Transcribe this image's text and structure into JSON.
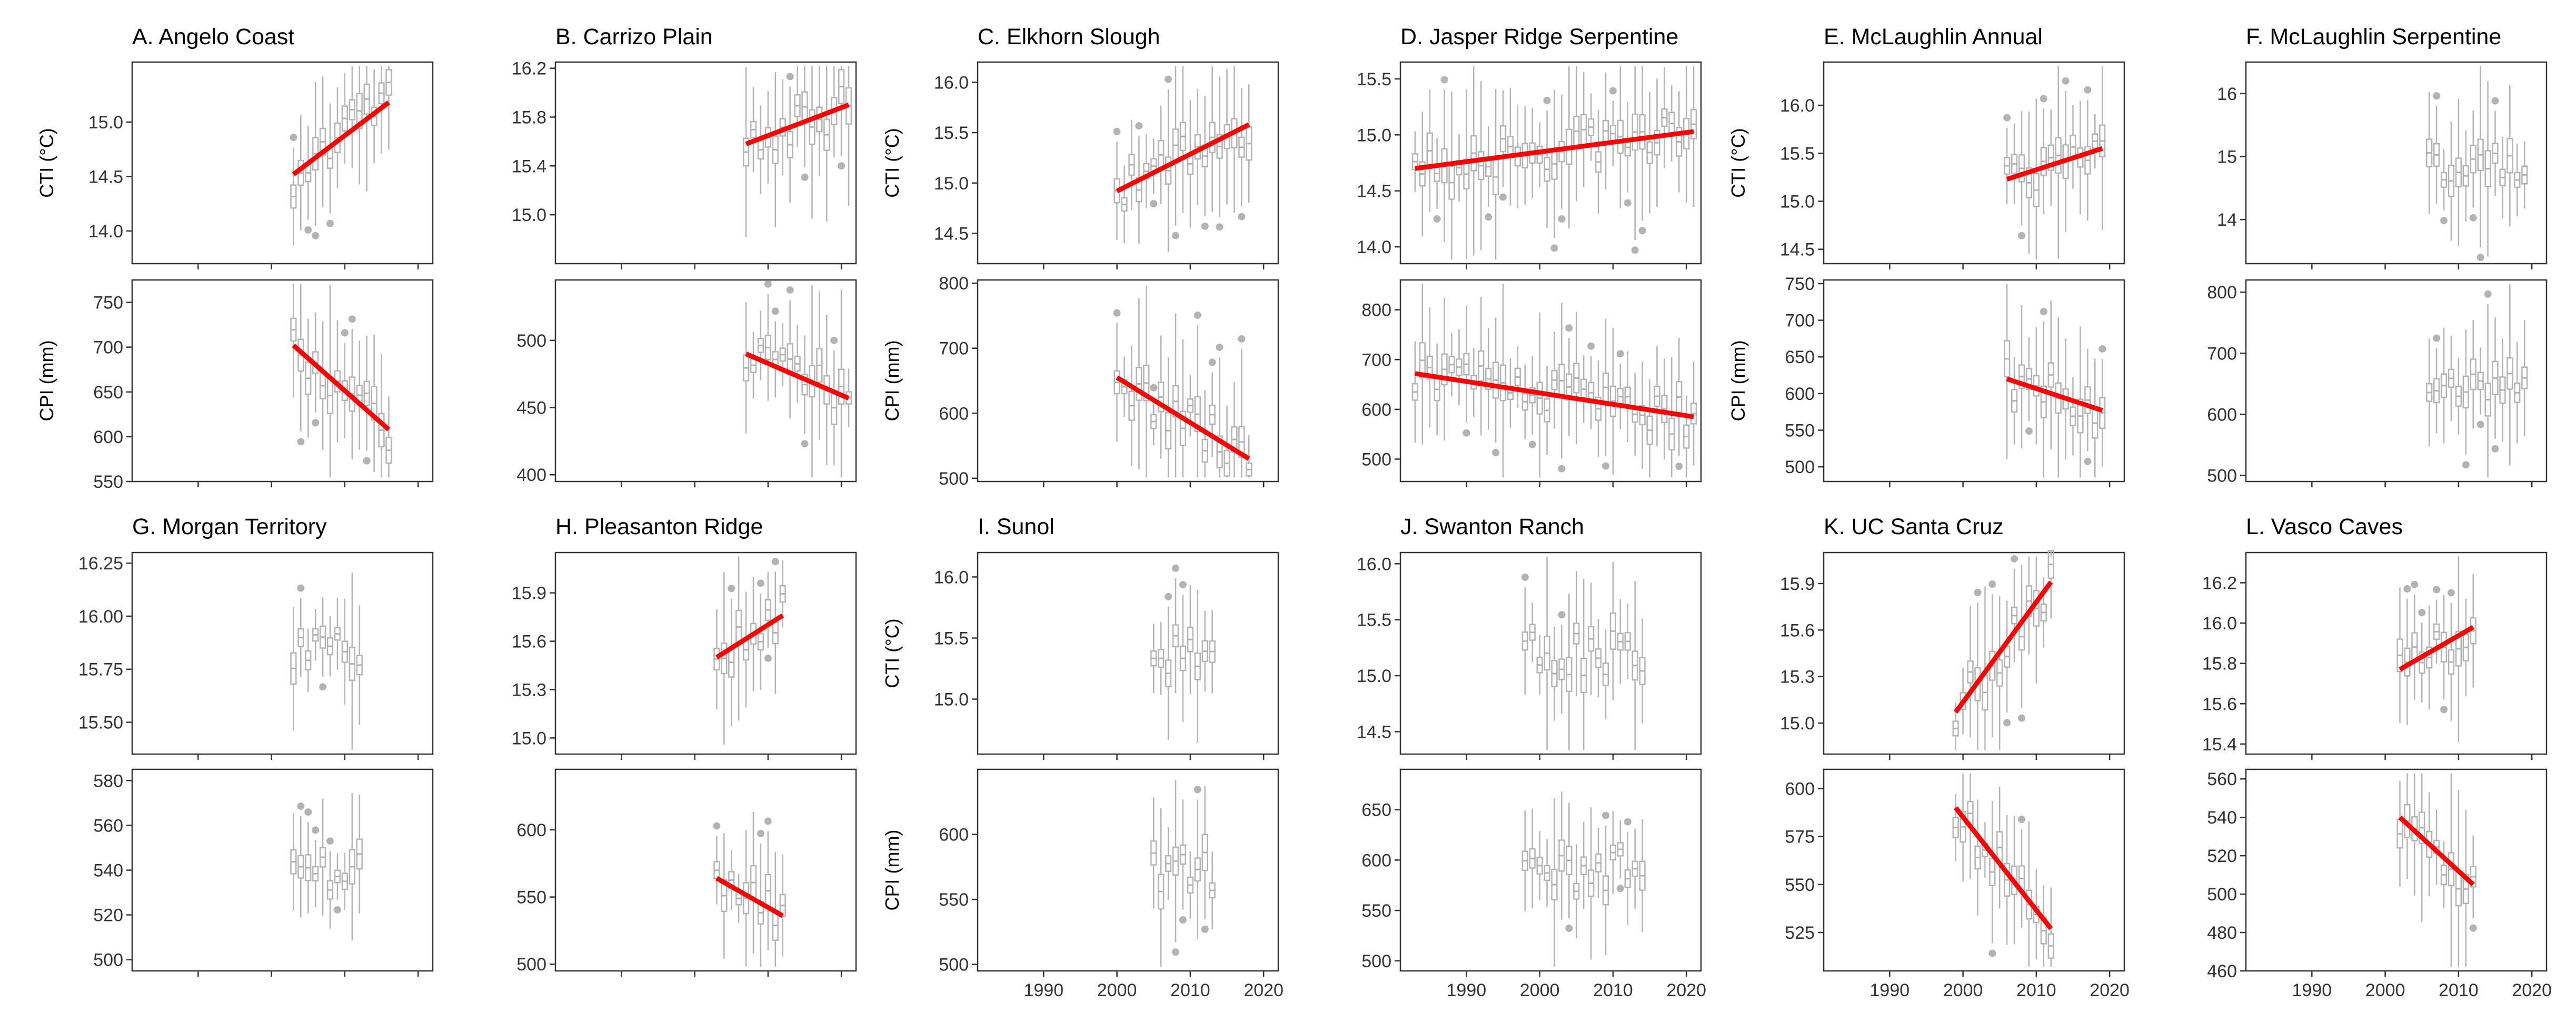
{
  "colors": {
    "box": "#b3b3b3",
    "trend": "#ff0000",
    "frame": "#333333",
    "text": "#000000",
    "background": "#ffffff"
  },
  "layout": {
    "rows": 2,
    "cols": 6,
    "x_axis_shared": true
  },
  "x_axis": {
    "range": [
      1981,
      2022
    ],
    "ticks": [
      1990,
      2000,
      2010,
      2020
    ],
    "tick_labels": [
      "1990",
      "2000",
      "2010",
      "2020"
    ]
  },
  "axis_labels": {
    "cti": "CTI (°C)",
    "cpi": "CPI (mm)"
  },
  "chart_data": [
    {
      "type": "boxplot",
      "panel_title": "A. Angelo Coast",
      "cti": {
        "ylabel": "CTI (°C)",
        "ylim": [
          13.7,
          15.55
        ],
        "ticks": [
          14.0,
          14.5,
          15.0
        ],
        "tick_labels": [
          "14.0",
          "14.5",
          "15.0"
        ],
        "years": [
          2003,
          2016
        ],
        "trend": {
          "x": [
            2003,
            2016
          ],
          "y": [
            14.52,
            15.18
          ]
        }
      },
      "cpi": {
        "ylabel": "CPI (mm)",
        "ylim": [
          550,
          775
        ],
        "ticks": [
          550,
          600,
          650,
          700,
          750
        ],
        "tick_labels": [
          "550",
          "600",
          "650",
          "700",
          "750"
        ],
        "years": [
          2003,
          2016
        ],
        "trend": {
          "x": [
            2003,
            2016
          ],
          "y": [
            702,
            608
          ]
        }
      }
    },
    {
      "type": "boxplot",
      "panel_title": "B. Carrizo Plain",
      "cti": {
        "ylim": [
          14.6,
          16.25
        ],
        "ticks": [
          15.0,
          15.4,
          15.8,
          16.2
        ],
        "tick_labels": [
          "15.0",
          "15.4",
          "15.8",
          "16.2"
        ],
        "years": [
          2007,
          2021
        ],
        "trend": {
          "x": [
            2007,
            2021
          ],
          "y": [
            15.58,
            15.9
          ]
        }
      },
      "cpi": {
        "ylim": [
          395,
          545
        ],
        "ticks": [
          400,
          450,
          500
        ],
        "tick_labels": [
          "400",
          "450",
          "500"
        ],
        "years": [
          2007,
          2021
        ],
        "trend": {
          "x": [
            2007,
            2021
          ],
          "y": [
            490,
            457
          ]
        }
      }
    },
    {
      "type": "boxplot",
      "panel_title": "C. Elkhorn Slough",
      "cti": {
        "ylabel": "CTI (°C)",
        "ylim": [
          14.2,
          16.2
        ],
        "ticks": [
          14.5,
          15.0,
          15.5,
          16.0
        ],
        "tick_labels": [
          "14.5",
          "15.0",
          "15.5",
          "16.0"
        ],
        "years": [
          2000,
          2018
        ],
        "trend": {
          "x": [
            2000,
            2018
          ],
          "y": [
            14.92,
            15.58
          ]
        }
      },
      "cpi": {
        "ylabel": "CPI (mm)",
        "ylim": [
          495,
          805
        ],
        "ticks": [
          500,
          600,
          700,
          800
        ],
        "tick_labels": [
          "500",
          "600",
          "700",
          "800"
        ],
        "years": [
          2000,
          2018
        ],
        "trend": {
          "x": [
            2000,
            2018
          ],
          "y": [
            655,
            530
          ]
        }
      }
    },
    {
      "type": "boxplot",
      "panel_title": "D. Jasper Ridge Serpentine",
      "cti": {
        "ylim": [
          13.85,
          15.65
        ],
        "ticks": [
          14.0,
          14.5,
          15.0,
          15.5
        ],
        "tick_labels": [
          "14.0",
          "14.5",
          "15.0",
          "15.5"
        ],
        "years": [
          1983,
          2021
        ],
        "trend": {
          "x": [
            1983,
            2021
          ],
          "y": [
            14.7,
            15.03
          ]
        }
      },
      "cpi": {
        "ylim": [
          455,
          860
        ],
        "ticks": [
          500,
          600,
          700,
          800
        ],
        "tick_labels": [
          "500",
          "600",
          "700",
          "800"
        ],
        "years": [
          1983,
          2021
        ],
        "trend": {
          "x": [
            1983,
            2021
          ],
          "y": [
            672,
            585
          ]
        }
      }
    },
    {
      "type": "boxplot",
      "panel_title": "E. McLaughlin Annual",
      "cti": {
        "ylabel": "CTI (°C)",
        "ylim": [
          14.35,
          16.45
        ],
        "ticks": [
          14.5,
          15.0,
          15.5,
          16.0
        ],
        "tick_labels": [
          "14.5",
          "15.0",
          "15.5",
          "16.0"
        ],
        "years": [
          2006,
          2019
        ],
        "trend": {
          "x": [
            2006,
            2019
          ],
          "y": [
            15.23,
            15.55
          ]
        }
      },
      "cpi": {
        "ylabel": "CPI (mm)",
        "ylim": [
          480,
          755
        ],
        "ticks": [
          500,
          550,
          600,
          650,
          700,
          750
        ],
        "tick_labels": [
          "500",
          "550",
          "600",
          "650",
          "700",
          "750"
        ],
        "years": [
          2006,
          2019
        ],
        "trend": {
          "x": [
            2006,
            2019
          ],
          "y": [
            620,
            577
          ]
        }
      }
    },
    {
      "type": "boxplot",
      "panel_title": "F. McLaughlin Serpentine",
      "cti": {
        "ylim": [
          13.3,
          16.5
        ],
        "ticks": [
          14,
          15,
          16
        ],
        "tick_labels": [
          "14",
          "15",
          "16"
        ],
        "years": [
          2006,
          2019
        ],
        "trend": null
      },
      "cpi": {
        "ylim": [
          490,
          820
        ],
        "ticks": [
          500,
          600,
          700,
          800
        ],
        "tick_labels": [
          "500",
          "600",
          "700",
          "800"
        ],
        "years": [
          2006,
          2019
        ],
        "trend": null
      }
    },
    {
      "type": "boxplot",
      "panel_title": "G. Morgan Territory",
      "cti": {
        "ylim": [
          15.35,
          16.3
        ],
        "ticks": [
          15.5,
          15.75,
          16.0,
          16.25
        ],
        "tick_labels": [
          "15.50",
          "15.75",
          "16.00",
          "16.25"
        ],
        "years": [
          2003,
          2012
        ],
        "trend": null
      },
      "cpi": {
        "ylim": [
          495,
          585
        ],
        "ticks": [
          500,
          520,
          540,
          560,
          580
        ],
        "tick_labels": [
          "500",
          "520",
          "540",
          "560",
          "580"
        ],
        "years": [
          2003,
          2012
        ],
        "trend": null
      }
    },
    {
      "type": "boxplot",
      "panel_title": "H. Pleasanton Ridge",
      "cti": {
        "ylim": [
          14.9,
          16.15
        ],
        "ticks": [
          15.0,
          15.3,
          15.6,
          15.9
        ],
        "tick_labels": [
          "15.0",
          "15.3",
          "15.6",
          "15.9"
        ],
        "years": [
          2003,
          2012
        ],
        "trend": {
          "x": [
            2003,
            2012
          ],
          "y": [
            15.5,
            15.76
          ]
        }
      },
      "cpi": {
        "ylim": [
          495,
          645
        ],
        "ticks": [
          500,
          550,
          600
        ],
        "tick_labels": [
          "500",
          "550",
          "600"
        ],
        "years": [
          2003,
          2012
        ],
        "trend": {
          "x": [
            2003,
            2012
          ],
          "y": [
            564,
            536
          ]
        }
      }
    },
    {
      "type": "boxplot",
      "panel_title": "I. Sunol",
      "cti": {
        "ylabel": "CTI (°C)",
        "ylim": [
          14.55,
          16.2
        ],
        "ticks": [
          15.0,
          15.5,
          16.0
        ],
        "tick_labels": [
          "15.0",
          "15.5",
          "16.0"
        ],
        "years": [
          2005,
          2013
        ],
        "trend": null
      },
      "cpi": {
        "ylabel": "CPI (mm)",
        "ylim": [
          495,
          650
        ],
        "ticks": [
          500,
          550,
          600
        ],
        "tick_labels": [
          "500",
          "550",
          "600"
        ],
        "years": [
          2005,
          2013
        ],
        "trend": null
      }
    },
    {
      "type": "boxplot",
      "panel_title": "J. Swanton Ranch",
      "cti": {
        "ylim": [
          14.3,
          16.1
        ],
        "ticks": [
          14.5,
          15.0,
          15.5,
          16.0
        ],
        "tick_labels": [
          "14.5",
          "15.0",
          "15.5",
          "16.0"
        ],
        "years": [
          1998,
          2014
        ],
        "trend": null
      },
      "cpi": {
        "ylim": [
          490,
          690
        ],
        "ticks": [
          500,
          550,
          600,
          650
        ],
        "tick_labels": [
          "500",
          "550",
          "600",
          "650"
        ],
        "years": [
          1998,
          2014
        ],
        "trend": null
      }
    },
    {
      "type": "boxplot",
      "panel_title": "K. UC Santa Cruz",
      "cti": {
        "ylim": [
          14.8,
          16.1
        ],
        "ticks": [
          15.0,
          15.3,
          15.6,
          15.9
        ],
        "tick_labels": [
          "15.0",
          "15.3",
          "15.6",
          "15.9"
        ],
        "years": [
          1999,
          2012
        ],
        "trend": {
          "x": [
            1999,
            2012
          ],
          "y": [
            15.07,
            15.91
          ]
        }
      },
      "cpi": {
        "ylim": [
          505,
          610
        ],
        "ticks": [
          525,
          550,
          575,
          600
        ],
        "tick_labels": [
          "525",
          "550",
          "575",
          "600"
        ],
        "years": [
          1999,
          2012
        ],
        "trend": {
          "x": [
            1999,
            2012
          ],
          "y": [
            590,
            527
          ]
        }
      }
    },
    {
      "type": "boxplot",
      "panel_title": "L. Vasco Caves",
      "cti": {
        "ylim": [
          15.35,
          16.35
        ],
        "ticks": [
          15.4,
          15.6,
          15.8,
          16.0,
          16.2
        ],
        "tick_labels": [
          "15.4",
          "15.6",
          "15.8",
          "16.0",
          "16.2"
        ],
        "years": [
          2002,
          2012
        ],
        "trend": {
          "x": [
            2002,
            2012
          ],
          "y": [
            15.77,
            15.98
          ]
        }
      },
      "cpi": {
        "ylim": [
          460,
          565
        ],
        "ticks": [
          460,
          480,
          500,
          520,
          540,
          560
        ],
        "tick_labels": [
          "460",
          "480",
          "500",
          "520",
          "540",
          "560"
        ],
        "years": [
          2002,
          2012
        ],
        "trend": {
          "x": [
            2002,
            2012
          ],
          "y": [
            540,
            505
          ]
        }
      }
    }
  ]
}
